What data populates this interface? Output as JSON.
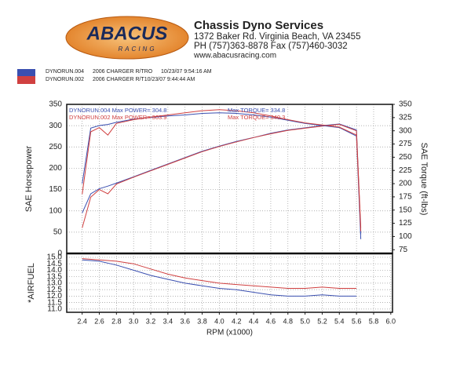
{
  "header": {
    "logo": "ABACUS",
    "logo_sub": "RACING",
    "company": "Chassis Dyno Services",
    "address": "1372 Baker Rd. Virginia Beach, VA 23455",
    "phone": "PH (757)363-8878 Fax (757)460-3032",
    "website": "www.abacusracing.com"
  },
  "runs": [
    {
      "file": "DYNORUN.004",
      "car": "2006 CHARGER R/TRO",
      "date": "10/23/07 9:54:16 AM"
    },
    {
      "file": "DYNORUN.002",
      "car": "2006 CHARGER R/T10/23/07 9:44:44 AM"
    }
  ],
  "chart_data": [
    {
      "type": "line",
      "ylabel": "SAE Horsepower",
      "y2label": "SAE Torque (ft-lbs)",
      "x": [
        2.4,
        2.5,
        2.6,
        2.7,
        2.8,
        3.0,
        3.2,
        3.4,
        3.6,
        3.8,
        4.0,
        4.2,
        4.4,
        4.6,
        4.8,
        5.0,
        5.2,
        5.4,
        5.6,
        5.65
      ],
      "xlim": [
        2.22,
        6.02
      ],
      "ylim": [
        0,
        350
      ],
      "yticks": [
        0,
        50,
        100,
        150,
        200,
        250,
        300,
        350
      ],
      "y2lim": [
        68,
        350
      ],
      "y2ticks": [
        75,
        100,
        125,
        150,
        175,
        200,
        225,
        250,
        275,
        300,
        325,
        350
      ],
      "grid": true,
      "annotations": [
        {
          "text": "DYNORUN.004  Max POWER= 304.8",
          "color": "#3a4fb0"
        },
        {
          "text": "Max TORQUE= 334.8",
          "color": "#3a4fb0"
        },
        {
          "text": "DYNORUN.002  Max POWER= 303.9",
          "color": "#d04040"
        },
        {
          "text": "Max TORQUE= 340.3",
          "color": "#d04040"
        }
      ],
      "series": [
        {
          "name": "DYNORUN.004 Power",
          "color": "#3a4fb0",
          "values": [
            95,
            140,
            152,
            158,
            165,
            180,
            195,
            210,
            225,
            240,
            252,
            263,
            272,
            282,
            290,
            295,
            300,
            304,
            290,
            45
          ]
        },
        {
          "name": "DYNORUN.002 Power",
          "color": "#d04040",
          "values": [
            60,
            132,
            150,
            140,
            163,
            179,
            194,
            209,
            224,
            239,
            251,
            262,
            272,
            281,
            289,
            294,
            299,
            303,
            288,
            60
          ]
        },
        {
          "name": "DYNORUN.004 Torque",
          "color": "#3a4fb0",
          "axis": "y2",
          "values": [
            200,
            305,
            310,
            312,
            316,
            322,
            325,
            328,
            330,
            333,
            334,
            333,
            330,
            326,
            320,
            314,
            310,
            306,
            290,
            95
          ]
        },
        {
          "name": "DYNORUN.002 Torque",
          "color": "#d04040",
          "axis": "y2",
          "values": [
            180,
            298,
            306,
            292,
            314,
            321,
            326,
            330,
            334,
            338,
            340,
            338,
            334,
            328,
            321,
            315,
            311,
            307,
            292,
            110
          ]
        }
      ]
    },
    {
      "type": "line",
      "ylabel": "*AIRFUEL",
      "xlabel": "RPM (x1000)",
      "x": [
        2.4,
        2.6,
        2.8,
        3.0,
        3.2,
        3.4,
        3.6,
        3.8,
        4.0,
        4.2,
        4.4,
        4.6,
        4.8,
        5.0,
        5.2,
        5.4,
        5.6
      ],
      "xlim": [
        2.22,
        6.02
      ],
      "ylim": [
        10.75,
        15.3
      ],
      "xticks": [
        2.4,
        2.6,
        2.8,
        {
          "value": 3.0,
          "label": "3.0"
        },
        3.2,
        3.4,
        3.6,
        3.8,
        {
          "value": 4.0,
          "label": "4.0"
        },
        4.2,
        4.4,
        4.6,
        4.8,
        {
          "value": 5.0,
          "label": "5.0"
        },
        5.2,
        5.4,
        5.6,
        5.8,
        {
          "value": 6.0,
          "label": "6.0"
        }
      ],
      "yticks": [
        {
          "value": 11.0,
          "label": "11.0"
        },
        11.5,
        {
          "value": 12.0,
          "label": "12.0"
        },
        12.5,
        {
          "value": 13.0,
          "label": "13.0"
        },
        13.5,
        {
          "value": 14.0,
          "label": "14.0"
        },
        14.5,
        {
          "value": 15.0,
          "label": "15.0"
        }
      ],
      "grid": true,
      "series": [
        {
          "name": "DYNORUN.004 Air/Fuel",
          "color": "#3a4fb0",
          "values": [
            14.8,
            14.7,
            14.4,
            14.0,
            13.6,
            13.3,
            13.0,
            12.8,
            12.6,
            12.5,
            12.3,
            12.1,
            12.0,
            12.0,
            12.1,
            12.0,
            12.0
          ]
        },
        {
          "name": "DYNORUN.002 Air/Fuel",
          "color": "#d04040",
          "values": [
            14.9,
            14.8,
            14.7,
            14.5,
            14.1,
            13.7,
            13.4,
            13.2,
            13.0,
            12.9,
            12.8,
            12.7,
            12.6,
            12.6,
            12.7,
            12.6,
            12.6
          ]
        }
      ]
    }
  ]
}
